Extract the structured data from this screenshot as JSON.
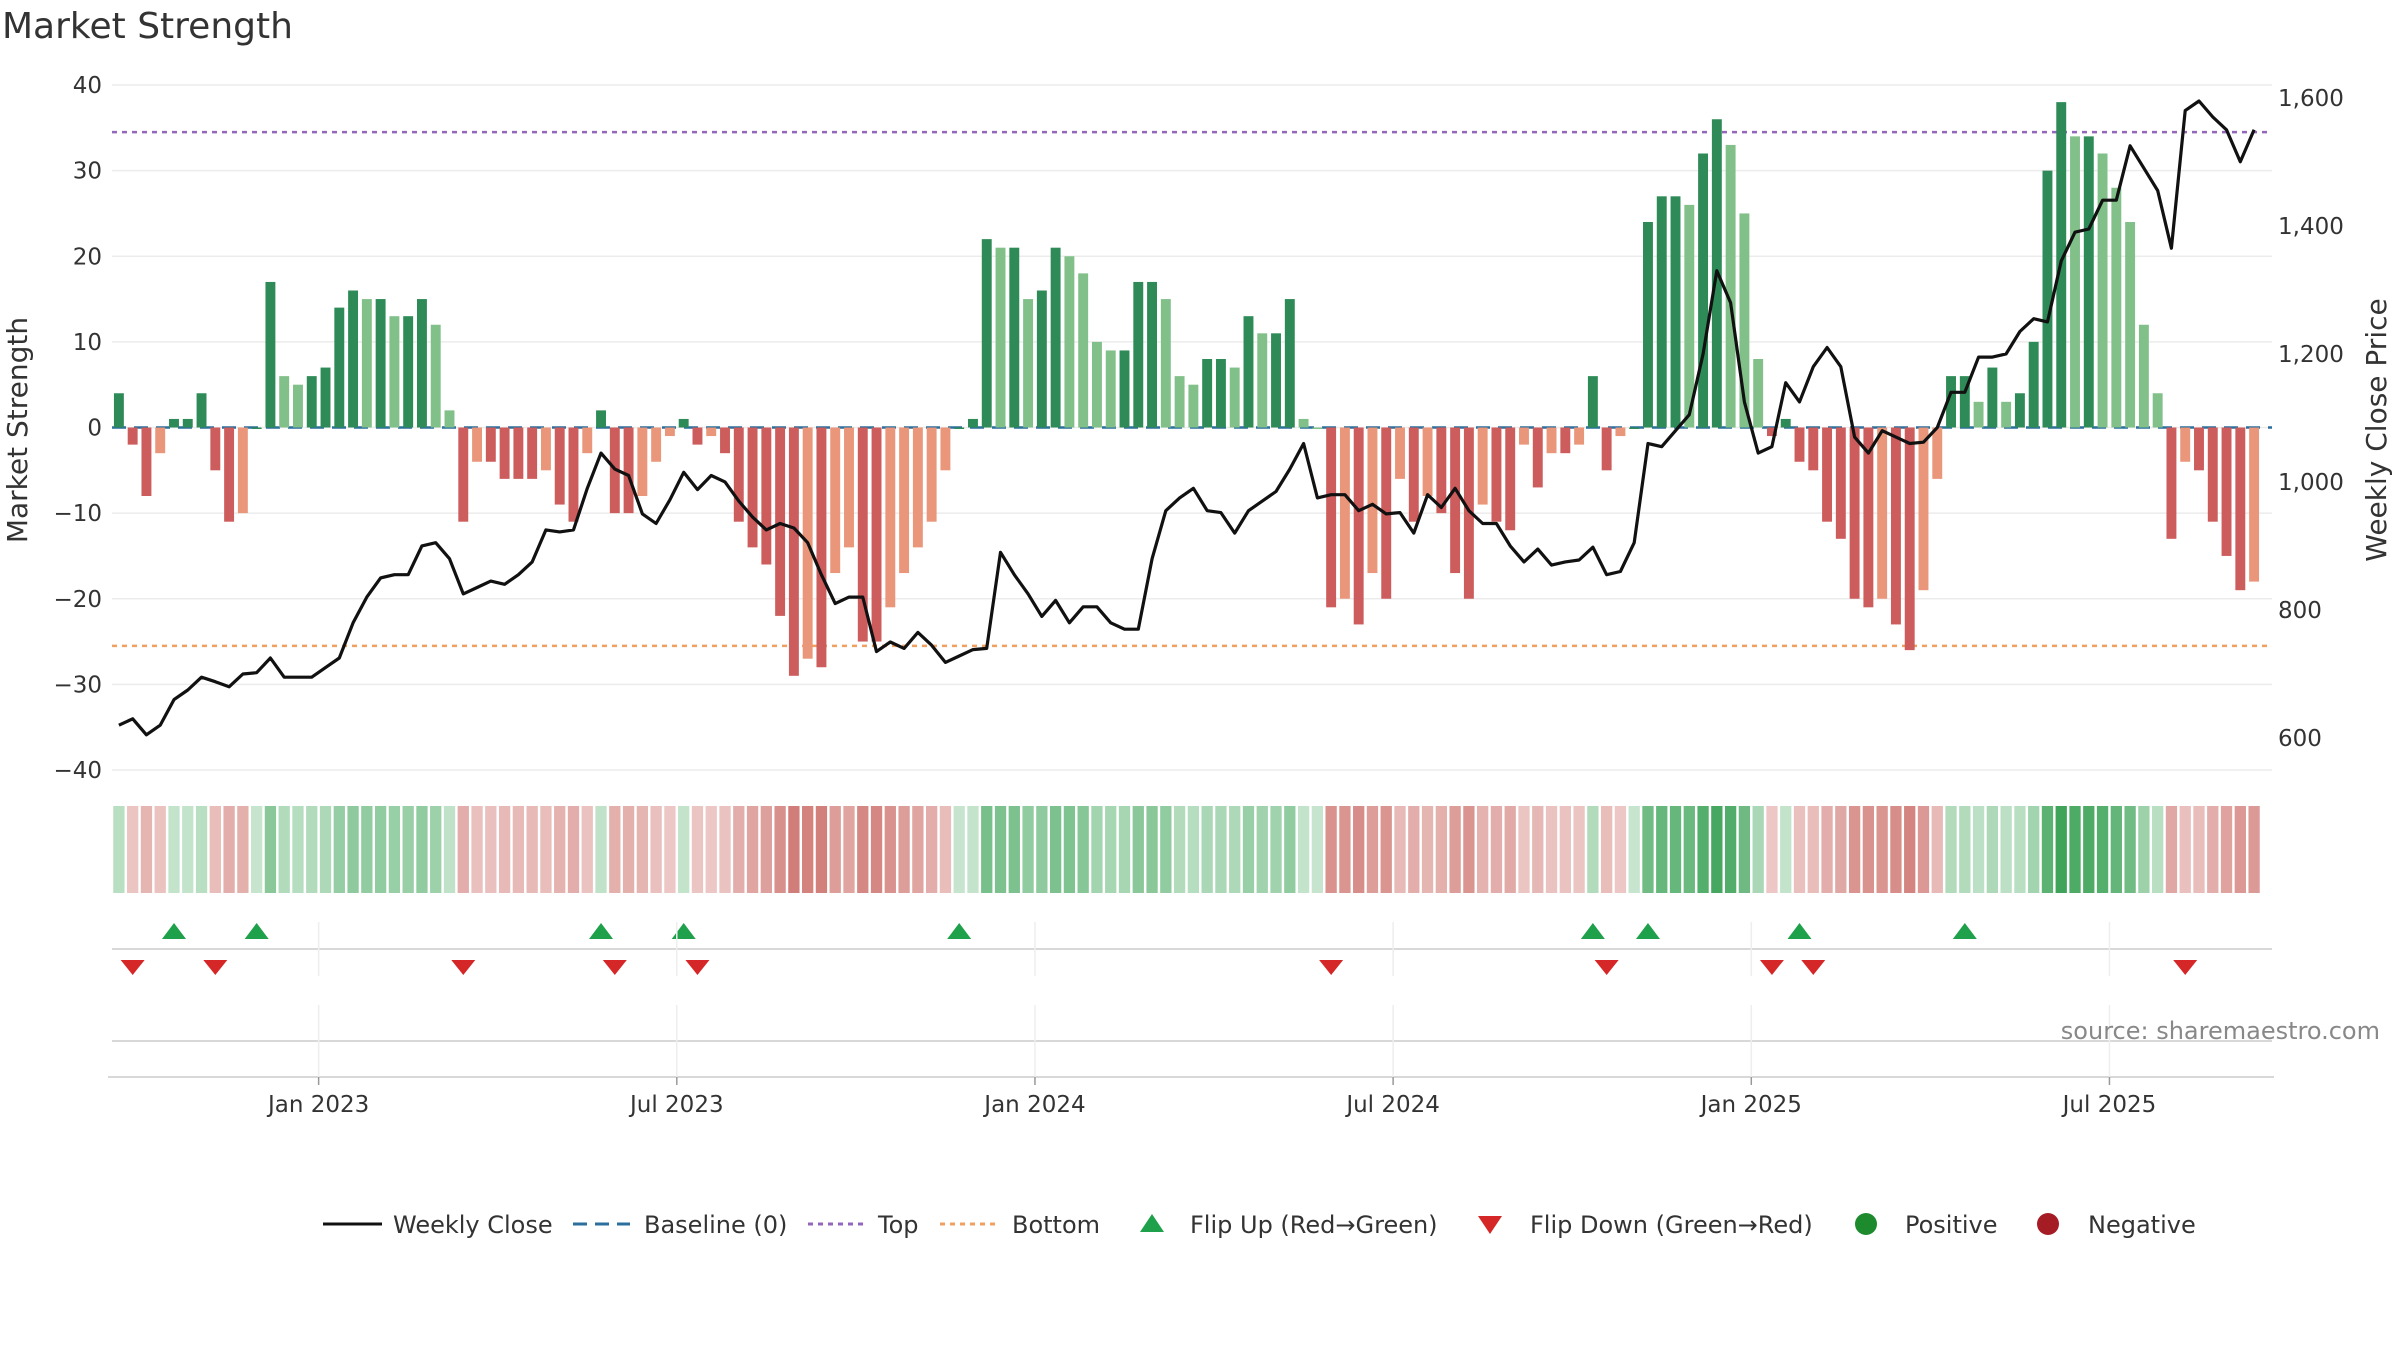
{
  "chart_data": {
    "type": "bar",
    "title": "Market Strength",
    "ylabel": "Market Strength",
    "y2label": "Weekly Close Price",
    "ylim": [
      -40,
      40
    ],
    "y_ticks": [
      40,
      30,
      20,
      10,
      0,
      -10,
      -20,
      -30,
      -40
    ],
    "y2lim": [
      550,
      1620
    ],
    "y2_ticks": [
      600,
      800,
      1000,
      1200,
      1400,
      1600
    ],
    "x_tick_labels": [
      "Jan 2023",
      "Jul 2023",
      "Jan 2024",
      "Jul 2024",
      "Jan 2025",
      "Jul 2025"
    ],
    "x_tick_weeks": [
      14.5,
      40.5,
      66.5,
      92.5,
      118.5,
      144.5
    ],
    "top_line": 34.5,
    "bottom_line": -25.5,
    "baseline": 0,
    "weeks": 157,
    "strength": [
      4,
      -2,
      -8,
      -3,
      1,
      1,
      4,
      -5,
      -11,
      -10,
      0,
      17,
      6,
      5,
      6,
      7,
      14,
      16,
      15,
      15,
      13,
      13,
      15,
      12,
      2,
      -11,
      -4,
      -4,
      -6,
      -6,
      -6,
      -5,
      -9,
      -11,
      -3,
      2,
      -10,
      -10,
      -8,
      -4,
      -1,
      1,
      -2,
      -1,
      -3,
      -11,
      -14,
      -16,
      -22,
      -29,
      -27,
      -28,
      -17,
      -14,
      -25,
      -25,
      -21,
      -17,
      -14,
      -11,
      -5,
      0,
      1,
      22,
      21,
      21,
      15,
      16,
      21,
      20,
      18,
      10,
      9,
      9,
      17,
      17,
      15,
      6,
      5,
      8,
      8,
      7,
      13,
      11,
      11,
      15,
      1,
      0,
      -21,
      -20,
      -23,
      -17,
      -20,
      -6,
      -11,
      -8,
      -10,
      -17,
      -20,
      -9,
      -11,
      -12,
      -2,
      -7,
      -3,
      -3,
      -2,
      6,
      -5,
      -1,
      0,
      24,
      27,
      27,
      26,
      32,
      36,
      33,
      25,
      8,
      -1,
      1,
      -4,
      -5,
      -11,
      -13,
      -20,
      -21,
      -20,
      -23,
      -26,
      -19,
      -6,
      6,
      6,
      3,
      7,
      3,
      4,
      10,
      30,
      38,
      34,
      34,
      32,
      28,
      24,
      12,
      4,
      -13,
      -4,
      -5,
      -11,
      -15,
      -19,
      -18
    ],
    "weekly_close": [
      620,
      630,
      605,
      620,
      660,
      675,
      695,
      688,
      680,
      700,
      702,
      725,
      695,
      695,
      695,
      710,
      725,
      780,
      820,
      850,
      855,
      855,
      900,
      905,
      880,
      825,
      835,
      845,
      840,
      855,
      875,
      925,
      922,
      925,
      990,
      1045,
      1020,
      1010,
      950,
      935,
      972,
      1015,
      988,
      1010,
      1000,
      970,
      945,
      925,
      935,
      928,
      905,
      855,
      810,
      820,
      820,
      735,
      750,
      740,
      765,
      745,
      718,
      728,
      738,
      740,
      890,
      855,
      825,
      790,
      815,
      780,
      805,
      805,
      780,
      770,
      770,
      880,
      955,
      975,
      990,
      955,
      952,
      920,
      955,
      970,
      985,
      1020,
      1060,
      975,
      980,
      980,
      955,
      965,
      950,
      952,
      920,
      980,
      960,
      990,
      955,
      935,
      935,
      900,
      875,
      895,
      870,
      875,
      878,
      898,
      855,
      860,
      905,
      1060,
      1055,
      1080,
      1105,
      1200,
      1330,
      1280,
      1125,
      1045,
      1055,
      1155,
      1125,
      1180,
      1210,
      1180,
      1070,
      1045,
      1080,
      1070,
      1060,
      1062,
      1085,
      1140,
      1140,
      1195,
      1195,
      1200,
      1235,
      1255,
      1250,
      1345,
      1390,
      1395,
      1440,
      1440,
      1525,
      1490,
      1455,
      1365,
      1580,
      1595,
      1570,
      1550,
      1500,
      1550
    ],
    "regime_strips": [
      {
        "week": 0,
        "color": "#c9e6cf"
      },
      {
        "week": 1,
        "color": "#ebc4c1"
      },
      {
        "week": 2,
        "color": "#ebc4c1"
      },
      {
        "week": 3,
        "color": "#f0d0cd"
      },
      {
        "week": 4,
        "color": "#d8eedc"
      },
      {
        "week": 5,
        "color": "#d8eedc"
      },
      {
        "week": 6,
        "color": "#c9e6cf"
      },
      {
        "week": 7,
        "color": "#e5b7b3"
      },
      {
        "week": 8,
        "color": "#e5b7b3"
      },
      {
        "week": 9,
        "color": "#ebc4c1"
      },
      {
        "week": 10,
        "color": "#f5f5f5"
      },
      {
        "week": 11,
        "color": "#9fd3aa"
      },
      {
        "week": 12,
        "color": "#b7dfbf"
      },
      {
        "week": 13,
        "color": "#b7dfbf"
      },
      {
        "week": 14,
        "color": "#b7dfbf"
      },
      {
        "week": 15,
        "color": "#a9d9b3"
      },
      {
        "week": 16,
        "color": "#9fd3aa"
      },
      {
        "week": 17,
        "color": "#98d1a4"
      },
      {
        "week": 18,
        "color": "#98d1a4"
      },
      {
        "week": 19,
        "color": "#98d1a4"
      },
      {
        "week": 20,
        "color": "#9fd3aa"
      },
      {
        "week": 21,
        "color": "#9fd3aa"
      },
      {
        "week": 22,
        "color": "#98d1a4"
      },
      {
        "week": 23,
        "color": "#a9d9b3"
      },
      {
        "week": 24,
        "color": "#c9e6cf"
      }
    ]
  },
  "flip_up_weeks": [
    4,
    10,
    35,
    41,
    61,
    107,
    111,
    122,
    134
  ],
  "flip_down_weeks": [
    1,
    7,
    25,
    36,
    42,
    88,
    108,
    120,
    123,
    150
  ],
  "legend": {
    "weekly_close": "Weekly Close",
    "baseline": "Baseline (0)",
    "top": "Top",
    "bottom": "Bottom",
    "flip_up": "Flip Up (Red→Green)",
    "flip_down": "Flip Down (Green→Red)",
    "positive": "Positive",
    "negative": "Negative"
  },
  "source": "source: sharemaestro.com",
  "colors": {
    "pos_dark": "#2e8b57",
    "pos_light": "#82c08a",
    "neg_dark": "#cd5c5c",
    "neg_light": "#e9967a",
    "price": "#111111",
    "baseline": "#2b6f9e",
    "top": "#9467bd",
    "bottom": "#f0a060",
    "flip_up": "#1fa04a",
    "flip_down": "#d62728",
    "positive_dot": "#1e8a2e",
    "negative_dot": "#a51c24"
  }
}
